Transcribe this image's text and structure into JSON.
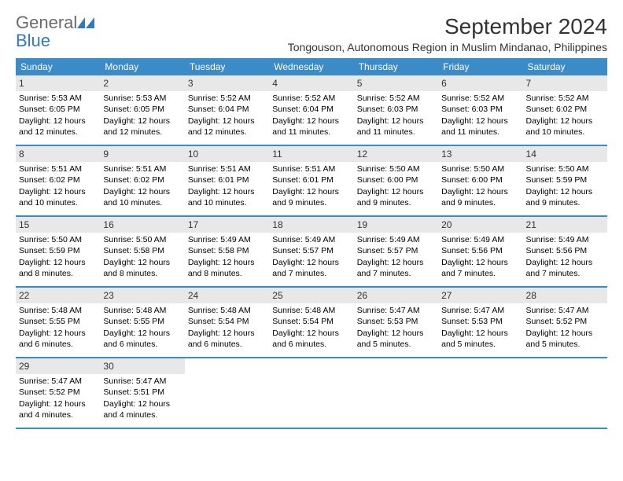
{
  "logo": {
    "general": "General",
    "blue": "Blue"
  },
  "title": "September 2024",
  "location": "Tongouson, Autonomous Region in Muslim Mindanao, Philippines",
  "colors": {
    "header_bg": "#3b8bc9",
    "header_text": "#ffffff",
    "daynum_bg": "#e8e8e8",
    "border": "#3b8bc9",
    "logo_gray": "#6b6b6b",
    "logo_blue": "#2f7bbf"
  },
  "day_names": [
    "Sunday",
    "Monday",
    "Tuesday",
    "Wednesday",
    "Thursday",
    "Friday",
    "Saturday"
  ],
  "weeks": [
    [
      {
        "n": "1",
        "sr": "Sunrise: 5:53 AM",
        "ss": "Sunset: 6:05 PM",
        "dl": "Daylight: 12 hours and 12 minutes."
      },
      {
        "n": "2",
        "sr": "Sunrise: 5:53 AM",
        "ss": "Sunset: 6:05 PM",
        "dl": "Daylight: 12 hours and 12 minutes."
      },
      {
        "n": "3",
        "sr": "Sunrise: 5:52 AM",
        "ss": "Sunset: 6:04 PM",
        "dl": "Daylight: 12 hours and 12 minutes."
      },
      {
        "n": "4",
        "sr": "Sunrise: 5:52 AM",
        "ss": "Sunset: 6:04 PM",
        "dl": "Daylight: 12 hours and 11 minutes."
      },
      {
        "n": "5",
        "sr": "Sunrise: 5:52 AM",
        "ss": "Sunset: 6:03 PM",
        "dl": "Daylight: 12 hours and 11 minutes."
      },
      {
        "n": "6",
        "sr": "Sunrise: 5:52 AM",
        "ss": "Sunset: 6:03 PM",
        "dl": "Daylight: 12 hours and 11 minutes."
      },
      {
        "n": "7",
        "sr": "Sunrise: 5:52 AM",
        "ss": "Sunset: 6:02 PM",
        "dl": "Daylight: 12 hours and 10 minutes."
      }
    ],
    [
      {
        "n": "8",
        "sr": "Sunrise: 5:51 AM",
        "ss": "Sunset: 6:02 PM",
        "dl": "Daylight: 12 hours and 10 minutes."
      },
      {
        "n": "9",
        "sr": "Sunrise: 5:51 AM",
        "ss": "Sunset: 6:02 PM",
        "dl": "Daylight: 12 hours and 10 minutes."
      },
      {
        "n": "10",
        "sr": "Sunrise: 5:51 AM",
        "ss": "Sunset: 6:01 PM",
        "dl": "Daylight: 12 hours and 10 minutes."
      },
      {
        "n": "11",
        "sr": "Sunrise: 5:51 AM",
        "ss": "Sunset: 6:01 PM",
        "dl": "Daylight: 12 hours and 9 minutes."
      },
      {
        "n": "12",
        "sr": "Sunrise: 5:50 AM",
        "ss": "Sunset: 6:00 PM",
        "dl": "Daylight: 12 hours and 9 minutes."
      },
      {
        "n": "13",
        "sr": "Sunrise: 5:50 AM",
        "ss": "Sunset: 6:00 PM",
        "dl": "Daylight: 12 hours and 9 minutes."
      },
      {
        "n": "14",
        "sr": "Sunrise: 5:50 AM",
        "ss": "Sunset: 5:59 PM",
        "dl": "Daylight: 12 hours and 9 minutes."
      }
    ],
    [
      {
        "n": "15",
        "sr": "Sunrise: 5:50 AM",
        "ss": "Sunset: 5:59 PM",
        "dl": "Daylight: 12 hours and 8 minutes."
      },
      {
        "n": "16",
        "sr": "Sunrise: 5:50 AM",
        "ss": "Sunset: 5:58 PM",
        "dl": "Daylight: 12 hours and 8 minutes."
      },
      {
        "n": "17",
        "sr": "Sunrise: 5:49 AM",
        "ss": "Sunset: 5:58 PM",
        "dl": "Daylight: 12 hours and 8 minutes."
      },
      {
        "n": "18",
        "sr": "Sunrise: 5:49 AM",
        "ss": "Sunset: 5:57 PM",
        "dl": "Daylight: 12 hours and 7 minutes."
      },
      {
        "n": "19",
        "sr": "Sunrise: 5:49 AM",
        "ss": "Sunset: 5:57 PM",
        "dl": "Daylight: 12 hours and 7 minutes."
      },
      {
        "n": "20",
        "sr": "Sunrise: 5:49 AM",
        "ss": "Sunset: 5:56 PM",
        "dl": "Daylight: 12 hours and 7 minutes."
      },
      {
        "n": "21",
        "sr": "Sunrise: 5:49 AM",
        "ss": "Sunset: 5:56 PM",
        "dl": "Daylight: 12 hours and 7 minutes."
      }
    ],
    [
      {
        "n": "22",
        "sr": "Sunrise: 5:48 AM",
        "ss": "Sunset: 5:55 PM",
        "dl": "Daylight: 12 hours and 6 minutes."
      },
      {
        "n": "23",
        "sr": "Sunrise: 5:48 AM",
        "ss": "Sunset: 5:55 PM",
        "dl": "Daylight: 12 hours and 6 minutes."
      },
      {
        "n": "24",
        "sr": "Sunrise: 5:48 AM",
        "ss": "Sunset: 5:54 PM",
        "dl": "Daylight: 12 hours and 6 minutes."
      },
      {
        "n": "25",
        "sr": "Sunrise: 5:48 AM",
        "ss": "Sunset: 5:54 PM",
        "dl": "Daylight: 12 hours and 6 minutes."
      },
      {
        "n": "26",
        "sr": "Sunrise: 5:47 AM",
        "ss": "Sunset: 5:53 PM",
        "dl": "Daylight: 12 hours and 5 minutes."
      },
      {
        "n": "27",
        "sr": "Sunrise: 5:47 AM",
        "ss": "Sunset: 5:53 PM",
        "dl": "Daylight: 12 hours and 5 minutes."
      },
      {
        "n": "28",
        "sr": "Sunrise: 5:47 AM",
        "ss": "Sunset: 5:52 PM",
        "dl": "Daylight: 12 hours and 5 minutes."
      }
    ],
    [
      {
        "n": "29",
        "sr": "Sunrise: 5:47 AM",
        "ss": "Sunset: 5:52 PM",
        "dl": "Daylight: 12 hours and 4 minutes."
      },
      {
        "n": "30",
        "sr": "Sunrise: 5:47 AM",
        "ss": "Sunset: 5:51 PM",
        "dl": "Daylight: 12 hours and 4 minutes."
      },
      {
        "empty": true
      },
      {
        "empty": true
      },
      {
        "empty": true
      },
      {
        "empty": true
      },
      {
        "empty": true
      }
    ]
  ]
}
